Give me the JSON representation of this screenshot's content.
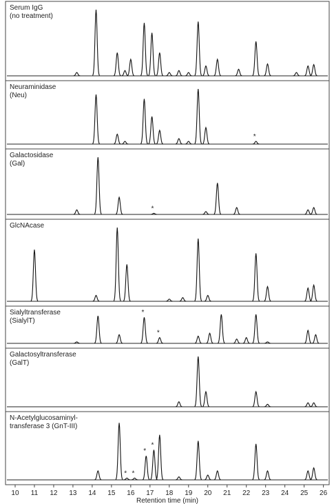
{
  "chart_data": [
    {
      "type": "chromatogram",
      "title": [
        "Serum IgG",
        "(no treatment)"
      ],
      "xlim": [
        9.5,
        26.3
      ],
      "x": [
        13.2,
        14.2,
        15.3,
        15.7,
        16.0,
        16.7,
        17.1,
        17.5,
        18.0,
        18.5,
        19.0,
        19.5,
        19.9,
        20.5,
        21.6,
        22.5,
        23.1,
        24.6,
        25.2,
        25.5
      ],
      "values": [
        5,
        100,
        35,
        8,
        25,
        80,
        65,
        35,
        5,
        8,
        5,
        82,
        15,
        25,
        10,
        52,
        18,
        5,
        15,
        17
      ],
      "annotations": []
    },
    {
      "type": "chromatogram",
      "title": [
        "Neuraminidase",
        "(Neu)"
      ],
      "xlim": [
        9.5,
        26.3
      ],
      "x": [
        14.2,
        15.3,
        15.7,
        16.7,
        17.1,
        17.5,
        18.5,
        19.0,
        19.5,
        19.9,
        22.5
      ],
      "values": [
        90,
        18,
        5,
        82,
        50,
        25,
        10,
        5,
        100,
        30,
        5
      ],
      "annotations": [
        {
          "text": "*",
          "x": 22.5
        }
      ]
    },
    {
      "type": "chromatogram",
      "title": [
        "Galactosidase",
        "(Gal)"
      ],
      "xlim": [
        9.5,
        26.3
      ],
      "x": [
        13.2,
        14.3,
        15.4,
        17.2,
        19.9,
        20.5,
        21.5,
        25.2,
        25.5
      ],
      "values": [
        8,
        100,
        30,
        2,
        5,
        55,
        12,
        8,
        12
      ],
      "annotations": [
        {
          "text": "*",
          "x": 17.2
        }
      ]
    },
    {
      "type": "chromatogram",
      "title": [
        "GlcNAcase"
      ],
      "xlim": [
        9.5,
        26.3
      ],
      "x": [
        11.0,
        14.2,
        15.3,
        15.8,
        18.0,
        18.7,
        19.5,
        20.0,
        22.5,
        23.1,
        25.2,
        25.5
      ],
      "values": [
        70,
        8,
        100,
        50,
        3,
        5,
        85,
        8,
        65,
        20,
        18,
        22
      ],
      "annotations": []
    },
    {
      "type": "chromatogram",
      "title": [
        "Sialyltransferase",
        "(SialylT)"
      ],
      "xlim": [
        9.5,
        26.3
      ],
      "x": [
        13.2,
        14.3,
        15.4,
        16.7,
        17.5,
        19.5,
        20.1,
        20.7,
        21.5,
        22.0,
        22.5,
        23.1,
        25.2,
        25.6
      ],
      "values": [
        5,
        95,
        30,
        90,
        20,
        25,
        35,
        100,
        15,
        20,
        100,
        5,
        45,
        30
      ],
      "annotations": [
        {
          "text": "*",
          "x": 16.7
        },
        {
          "text": "*",
          "x": 17.5
        }
      ]
    },
    {
      "type": "chromatogram",
      "title": [
        "Galactosyltransferase",
        "(GalT)"
      ],
      "xlim": [
        9.5,
        26.3
      ],
      "x": [
        18.5,
        19.5,
        19.9,
        22.5,
        23.1,
        25.2,
        25.5
      ],
      "values": [
        10,
        100,
        30,
        30,
        5,
        8,
        8
      ],
      "annotations": []
    },
    {
      "type": "chromatogram",
      "title": [
        "N-Acetylglucosaminyl-",
        "transferase 3 (GnT-III)"
      ],
      "xlim": [
        9.5,
        26.3
      ],
      "x": [
        14.3,
        15.4,
        15.8,
        16.2,
        16.8,
        17.2,
        17.5,
        18.5,
        19.5,
        20.0,
        20.5,
        22.5,
        23.1,
        25.2,
        25.5
      ],
      "values": [
        15,
        95,
        3,
        3,
        40,
        50,
        75,
        5,
        65,
        8,
        15,
        60,
        15,
        15,
        20
      ],
      "annotations": [
        {
          "text": "*",
          "x": 15.8
        },
        {
          "text": "*",
          "x": 16.2
        },
        {
          "text": "*",
          "x": 16.8
        },
        {
          "text": "*",
          "x": 17.2
        }
      ],
      "xticks": [
        10,
        11,
        12,
        13,
        14,
        15,
        16,
        17,
        18,
        19,
        20,
        21,
        22,
        23,
        24,
        25,
        26
      ],
      "xlabel": "Retention time (min)"
    }
  ]
}
